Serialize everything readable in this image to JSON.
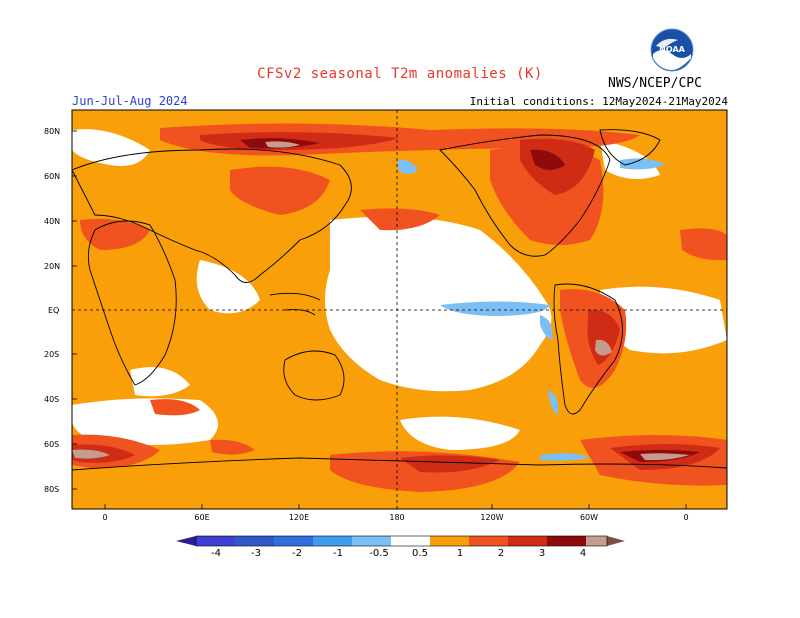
{
  "header": {
    "title": "CFSv2 seasonal T2m anomalies (K)",
    "season": "Jun-Jul-Aug 2024",
    "agency": "NWS/NCEP/CPC",
    "initial_conditions": "Initial conditions: 12May2024-21May2024",
    "logo_text": "NOAA"
  },
  "axes": {
    "lat_labels": [
      "80N",
      "60N",
      "40N",
      "20N",
      "EQ",
      "20S",
      "40S",
      "60S",
      "80S"
    ],
    "lon_labels": [
      "0",
      "60E",
      "120E",
      "180",
      "120W",
      "60W",
      "0"
    ]
  },
  "colorbar": {
    "labels": [
      "-4",
      "-3",
      "-2",
      "-1",
      "-0.5",
      "0.5",
      "1",
      "2",
      "3",
      "4"
    ],
    "colors": [
      "#2a1d8f",
      "#3f3fd6",
      "#2f6fde",
      "#3f9df0",
      "#7cbff5",
      "#ffffff",
      "#f99f09",
      "#f0531f",
      "#d02b14",
      "#8f0a0a",
      "#c59c8e",
      "#7b5046"
    ]
  },
  "legend_meaning": {
    "color_scale": [
      "#2a1d8f",
      "#3f3fd6",
      "#2f6fde",
      "#3f9df0",
      "#7cbff5",
      "#ffffff",
      "#f99f09",
      "#f0531f",
      "#d02b14",
      "#8f0a0a",
      "#c59c8e",
      "#7b5046"
    ]
  }
}
